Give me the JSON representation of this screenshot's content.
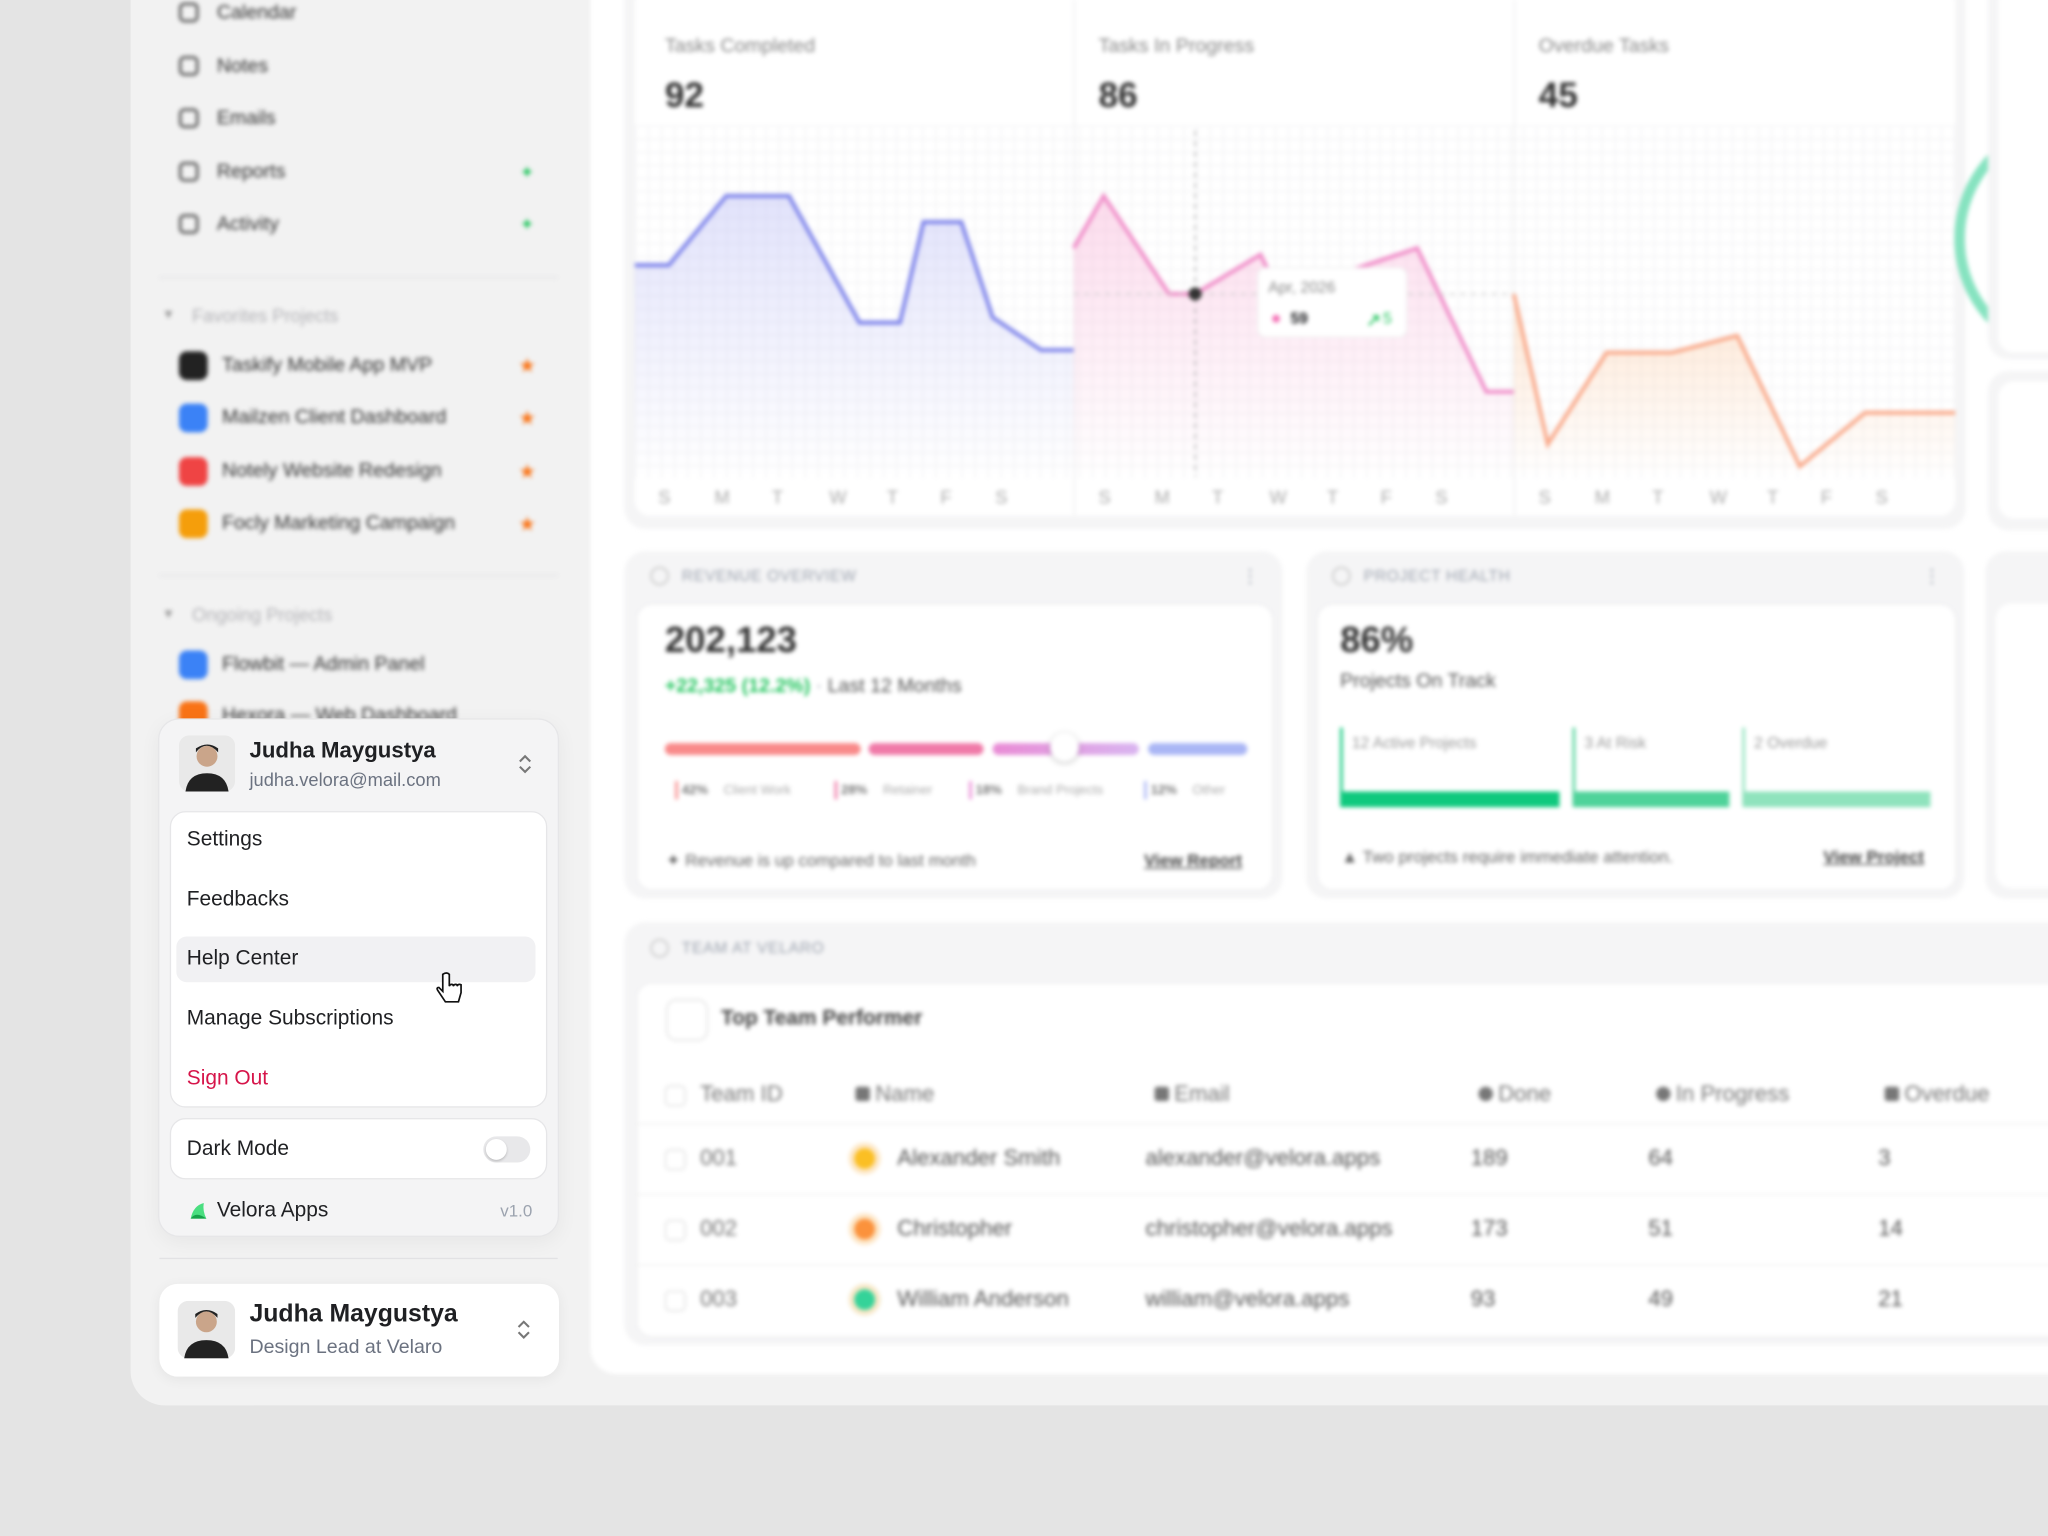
{
  "sidebar": {
    "nav": [
      "Calendar",
      "Notes",
      "Emails",
      "Reports",
      "Activity"
    ],
    "favorites": {
      "title": "Favorites Projects",
      "items": [
        "Taskify Mobile App MVP",
        "Mailzen Client Dashboard",
        "Notely Website Redesign",
        "Focly Marketing Campaign"
      ]
    },
    "ongoing": {
      "title": "Ongoing Projects",
      "items": [
        "Flowbit — Admin Panel",
        "Hexora — Web Dashboard"
      ]
    }
  },
  "account_menu": {
    "name": "Judha Maygustya",
    "email": "judha.velora@mail.com",
    "items": [
      "Settings",
      "Feedbacks",
      "Help Center",
      "Manage Subscriptions",
      "Sign Out"
    ],
    "dark_mode": "Dark Mode",
    "app": "Velora Apps",
    "version": "v1.0"
  },
  "profile": {
    "name": "Judha Maygustya",
    "role": "Design Lead at Velaro"
  },
  "stats": [
    {
      "label": "Tasks Completed",
      "value": 92,
      "days": [
        "S",
        "M",
        "T",
        "W",
        "T",
        "F",
        "S"
      ]
    },
    {
      "label": "Tasks In Progress",
      "value": 86,
      "days": [
        "S",
        "M",
        "T",
        "W",
        "T",
        "F",
        "S"
      ]
    },
    {
      "label": "Overdue Tasks",
      "value": 45,
      "days": [
        "S",
        "M",
        "T",
        "W",
        "T",
        "F",
        "S"
      ]
    }
  ],
  "tooltip": {
    "date": "Apr, 2026",
    "value": 59,
    "change": 5
  },
  "revenue": {
    "title": "REVENUE OVERVIEW",
    "value": "202,123",
    "change": "+22,325 (12.2%)",
    "period": "Last 12 Months",
    "segments": [
      {
        "percent": "42%",
        "label": "Client Work"
      },
      {
        "percent": "28%",
        "label": "Retainer"
      },
      {
        "percent": "18%",
        "label": "Brand Projects"
      },
      {
        "percent": "12%",
        "label": "Other"
      }
    ],
    "note": "Revenue is up compared to last month",
    "link": "View Report"
  },
  "health": {
    "title": "PROJECT HEALTH",
    "value": "86%",
    "subtitle": "Projects On Track",
    "bars": [
      "12 Active Projects",
      "3 At Risk",
      "2 Overdue"
    ],
    "note": "Two projects require immediate attention.",
    "link": "View Project"
  },
  "team": {
    "title": "TEAM AT VELARO",
    "subtitle": "Top Team Performer",
    "columns": [
      "Team ID",
      "Name",
      "Email",
      "Done",
      "In Progress",
      "Overdue"
    ],
    "rows": [
      [
        "001",
        "Alexander Smith",
        "alexander@velora.apps",
        189,
        64,
        3
      ],
      [
        "002",
        "Christopher",
        "christopher@velora.apps",
        173,
        51,
        14
      ],
      [
        "003",
        "William Anderson",
        "william@velora.apps",
        93,
        49,
        21
      ]
    ]
  }
}
